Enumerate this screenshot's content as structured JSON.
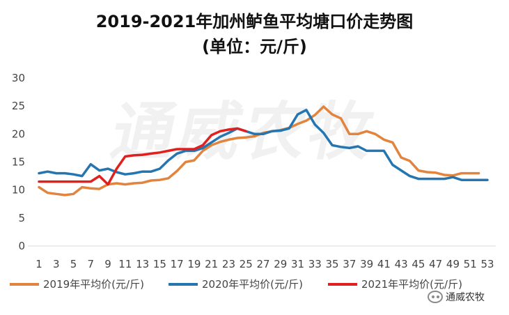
{
  "chart_data": {
    "type": "line",
    "title": "2019-2021年加州鲈鱼平均塘口价走势图",
    "subtitle": "(单位：元/斤)",
    "watermark": "通威农牧",
    "brand_badge": "通威农牧",
    "ylim": [
      0,
      30
    ],
    "yticks": [
      0,
      5,
      10,
      15,
      20,
      25,
      30
    ],
    "xticks": [
      1,
      3,
      5,
      7,
      9,
      11,
      13,
      15,
      17,
      19,
      21,
      23,
      25,
      27,
      29,
      31,
      33,
      35,
      37,
      39,
      41,
      43,
      45,
      47,
      49,
      51,
      53
    ],
    "x_range": [
      1,
      53
    ],
    "grid": false,
    "legend_position": "bottom",
    "series": [
      {
        "name": "2019年平均价(元/斤)",
        "color": "#e2843d",
        "x": [
          1,
          2,
          3,
          4,
          5,
          6,
          7,
          8,
          9,
          10,
          11,
          12,
          13,
          14,
          15,
          16,
          17,
          18,
          19,
          20,
          21,
          22,
          23,
          24,
          25,
          26,
          27,
          28,
          29,
          30,
          31,
          32,
          33,
          34,
          35,
          36,
          37,
          38,
          39,
          40,
          41,
          42,
          43,
          44,
          45,
          46,
          47,
          48,
          49,
          50,
          51,
          52
        ],
        "values": [
          10.5,
          9.5,
          9.3,
          9.1,
          9.3,
          10.5,
          10.3,
          10.2,
          11.0,
          11.2,
          11.0,
          11.2,
          11.3,
          11.7,
          11.8,
          12.1,
          13.4,
          15.0,
          15.3,
          17.0,
          18.0,
          18.6,
          19.0,
          19.3,
          19.4,
          19.6,
          20.2,
          20.5,
          20.7,
          21.1,
          21.8,
          22.4,
          23.4,
          24.9,
          23.5,
          22.8,
          20.0,
          20.0,
          20.5,
          20.0,
          19.0,
          18.5,
          15.8,
          15.2,
          13.5,
          13.2,
          13.1,
          12.7,
          12.6,
          13.0,
          13.0,
          13.0
        ]
      },
      {
        "name": "2020年平均价(元/斤)",
        "color": "#2475b0",
        "x": [
          1,
          2,
          3,
          4,
          5,
          6,
          7,
          8,
          9,
          10,
          11,
          12,
          13,
          14,
          15,
          16,
          17,
          18,
          19,
          20,
          21,
          22,
          23,
          24,
          25,
          26,
          27,
          28,
          29,
          30,
          31,
          32,
          33,
          34,
          35,
          36,
          37,
          38,
          39,
          40,
          41,
          42,
          43,
          44,
          45,
          46,
          47,
          48,
          49,
          50,
          51,
          52,
          53
        ],
        "values": [
          13.0,
          13.3,
          13.0,
          13.0,
          12.8,
          12.5,
          14.6,
          13.5,
          13.8,
          13.2,
          12.8,
          13.0,
          13.3,
          13.3,
          13.8,
          15.3,
          16.5,
          17.0,
          17.0,
          17.5,
          18.5,
          19.5,
          20.2,
          21.0,
          20.5,
          20.0,
          20.0,
          20.5,
          20.6,
          21.0,
          23.5,
          24.3,
          21.7,
          20.2,
          18.0,
          17.7,
          17.5,
          17.8,
          17.0,
          17.0,
          17.0,
          14.5,
          13.5,
          12.5,
          12.0,
          12.0,
          12.0,
          12.0,
          12.3,
          11.8,
          11.8,
          11.8,
          11.8
        ]
      },
      {
        "name": "2021年平均价(元/斤)",
        "color": "#e0201f",
        "x": [
          1,
          2,
          3,
          4,
          5,
          6,
          7,
          8,
          9,
          10,
          11,
          12,
          13,
          14,
          15,
          16,
          17,
          18,
          19,
          20,
          21,
          22,
          23,
          24,
          25
        ],
        "values": [
          11.5,
          11.5,
          11.5,
          11.5,
          11.5,
          11.5,
          11.5,
          12.5,
          11.0,
          13.8,
          16.0,
          16.2,
          16.3,
          16.5,
          16.7,
          17.0,
          17.3,
          17.3,
          17.3,
          18.0,
          19.8,
          20.5,
          20.8,
          21.0,
          20.5
        ]
      }
    ]
  }
}
